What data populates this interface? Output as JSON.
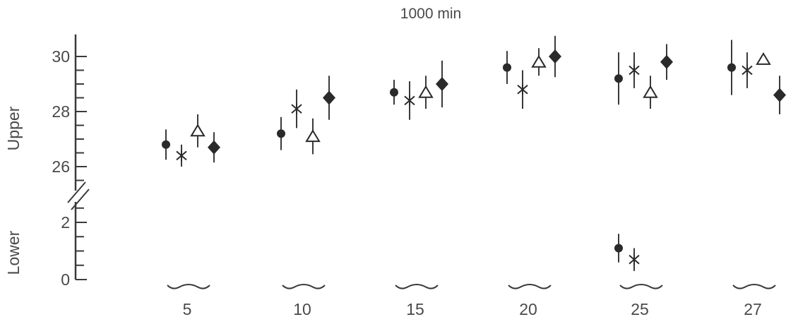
{
  "chart_data": {
    "type": "scatter",
    "title": "1000 min",
    "ylabel_upper": "Upper",
    "ylabel_lower": "Lower",
    "categories": [
      "5",
      "10",
      "15",
      "20",
      "25",
      "27"
    ],
    "yticks_upper": [
      "26",
      "28",
      "30"
    ],
    "yticks_lower": [
      "0",
      "2"
    ],
    "ylim_upper": [
      25.5,
      30.8
    ],
    "ylim_lower": [
      0,
      2.8
    ],
    "grid": false,
    "series": [
      {
        "marker": "filled-circle",
        "upper": [
          {
            "x": "5",
            "y": 26.8,
            "err": 0.55
          },
          {
            "x": "10",
            "y": 27.2,
            "err": 0.6
          },
          {
            "x": "15",
            "y": 28.7,
            "err": 0.45
          },
          {
            "x": "20",
            "y": 29.6,
            "err": 0.6
          },
          {
            "x": "25",
            "y": 29.2,
            "err": 0.95
          },
          {
            "x": "27",
            "y": 29.6,
            "err": 1.0
          }
        ],
        "lower": [
          {
            "x": "25",
            "y": 1.1,
            "err": 0.5
          }
        ]
      },
      {
        "marker": "asterisk",
        "upper": [
          {
            "x": "5",
            "y": 26.4,
            "err": 0.4
          },
          {
            "x": "10",
            "y": 28.1,
            "err": 0.7
          },
          {
            "x": "15",
            "y": 28.4,
            "err": 0.7
          },
          {
            "x": "20",
            "y": 28.8,
            "err": 0.7
          },
          {
            "x": "25",
            "y": 29.5,
            "err": 0.65
          },
          {
            "x": "27",
            "y": 29.5,
            "err": 0.65
          }
        ],
        "lower": [
          {
            "x": "25",
            "y": 0.7,
            "err": 0.4
          }
        ]
      },
      {
        "marker": "open-triangle",
        "upper": [
          {
            "x": "5",
            "y": 27.3,
            "err": 0.6
          },
          {
            "x": "10",
            "y": 27.1,
            "err": 0.65
          },
          {
            "x": "15",
            "y": 28.7,
            "err": 0.6
          },
          {
            "x": "20",
            "y": 29.8,
            "err": 0.5
          },
          {
            "x": "25",
            "y": 28.7,
            "err": 0.6
          },
          {
            "x": "27",
            "y": 29.9,
            "err": 0.1
          }
        ],
        "lower": []
      },
      {
        "marker": "filled-diamond",
        "upper": [
          {
            "x": "5",
            "y": 26.7,
            "err": 0.55
          },
          {
            "x": "10",
            "y": 28.5,
            "err": 0.8
          },
          {
            "x": "15",
            "y": 29.0,
            "err": 0.85
          },
          {
            "x": "20",
            "y": 30.0,
            "err": 0.75
          },
          {
            "x": "25",
            "y": 29.8,
            "err": 0.65
          },
          {
            "x": "27",
            "y": 28.6,
            "err": 0.7
          }
        ],
        "lower": []
      }
    ]
  }
}
